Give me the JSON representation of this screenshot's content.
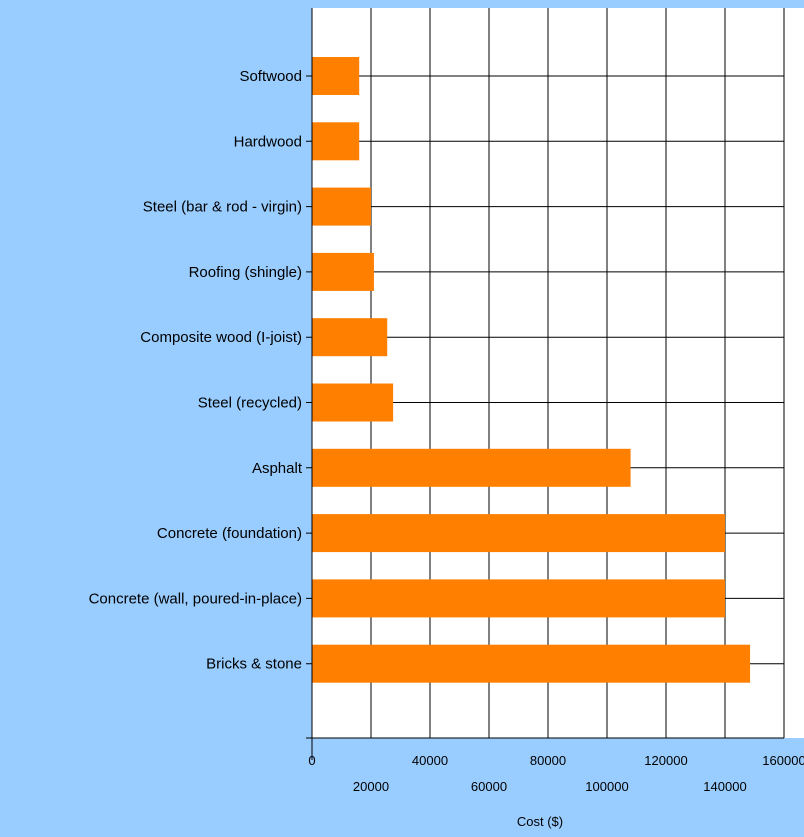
{
  "colors": {
    "background": "#99ccff",
    "plot_background": "#ffffff",
    "bar": "#ff7f00",
    "grid": "#000000"
  },
  "chart_data": {
    "type": "bar",
    "orientation": "horizontal",
    "categories": [
      "Softwood",
      "Hardwood",
      "Steel (bar & rod - virgin)",
      "Roofing (shingle)",
      "Composite wood (I-joist)",
      "Steel (recycled)",
      "Asphalt",
      "Concrete (foundation)",
      "Concrete (wall, poured-in-place)",
      "Bricks & stone"
    ],
    "values": [
      16000,
      16000,
      20000,
      21000,
      25500,
      27500,
      108000,
      140000,
      140000,
      148500
    ],
    "title": "",
    "xlabel": "Cost ($)",
    "ylabel": "",
    "xlim": [
      0,
      160000
    ],
    "x_ticks_top_row": [
      "0",
      "40000",
      "80000",
      "120000",
      "160000"
    ],
    "x_ticks_bottom_row": [
      "20000",
      "60000",
      "100000",
      "140000"
    ],
    "grid": true,
    "legend": "none"
  }
}
